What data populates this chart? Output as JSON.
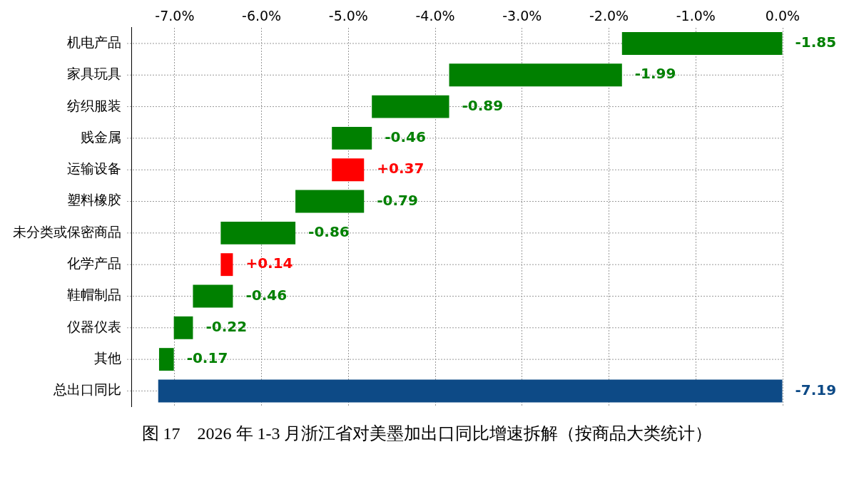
{
  "chart_data": {
    "type": "bar",
    "orientation": "horizontal",
    "title": "图 17　2026 年 1-3 月浙江省对美墨加出口同比增速拆解（按商品大类统计）",
    "categories": [
      "机电产品",
      "家具玩具",
      "纺织服装",
      "贱金属",
      "运输设备",
      "塑料橡胶",
      "未分类或保密商品",
      "化学产品",
      "鞋帽制品",
      "仪器仪表",
      "其他",
      "总出口同比"
    ],
    "values": [
      -1.85,
      -1.99,
      -0.89,
      -0.46,
      0.37,
      -0.79,
      -0.86,
      0.14,
      -0.46,
      -0.22,
      -0.17,
      -7.19
    ],
    "base": [
      0,
      -1.85,
      -3.84,
      -4.73,
      -5.19,
      -4.82,
      -5.61,
      -6.47,
      -6.33,
      -6.79,
      -7.01,
      0
    ],
    "value_labels": [
      "-1.85",
      "-1.99",
      "-0.89",
      "-0.46",
      "+0.37",
      "-0.79",
      "-0.86",
      "+0.14",
      "-0.46",
      "-0.22",
      "-0.17",
      "-7.19"
    ],
    "colors": [
      "#008000",
      "#008000",
      "#008000",
      "#008000",
      "#ff0000",
      "#008000",
      "#008000",
      "#ff0000",
      "#008000",
      "#008000",
      "#008000",
      "#0d4a86"
    ],
    "xlim": [
      -7.5,
      0
    ],
    "xticks": [
      {
        "value": -7,
        "label": "-7.0%"
      },
      {
        "value": -6,
        "label": "-6.0%"
      },
      {
        "value": -5,
        "label": "-5.0%"
      },
      {
        "value": -4,
        "label": "-4.0%"
      },
      {
        "value": -3,
        "label": "-3.0%"
      },
      {
        "value": -2,
        "label": "-2.0%"
      },
      {
        "value": -1,
        "label": "-1.0%"
      },
      {
        "value": 0,
        "label": "0.0%"
      }
    ],
    "grid": true
  }
}
